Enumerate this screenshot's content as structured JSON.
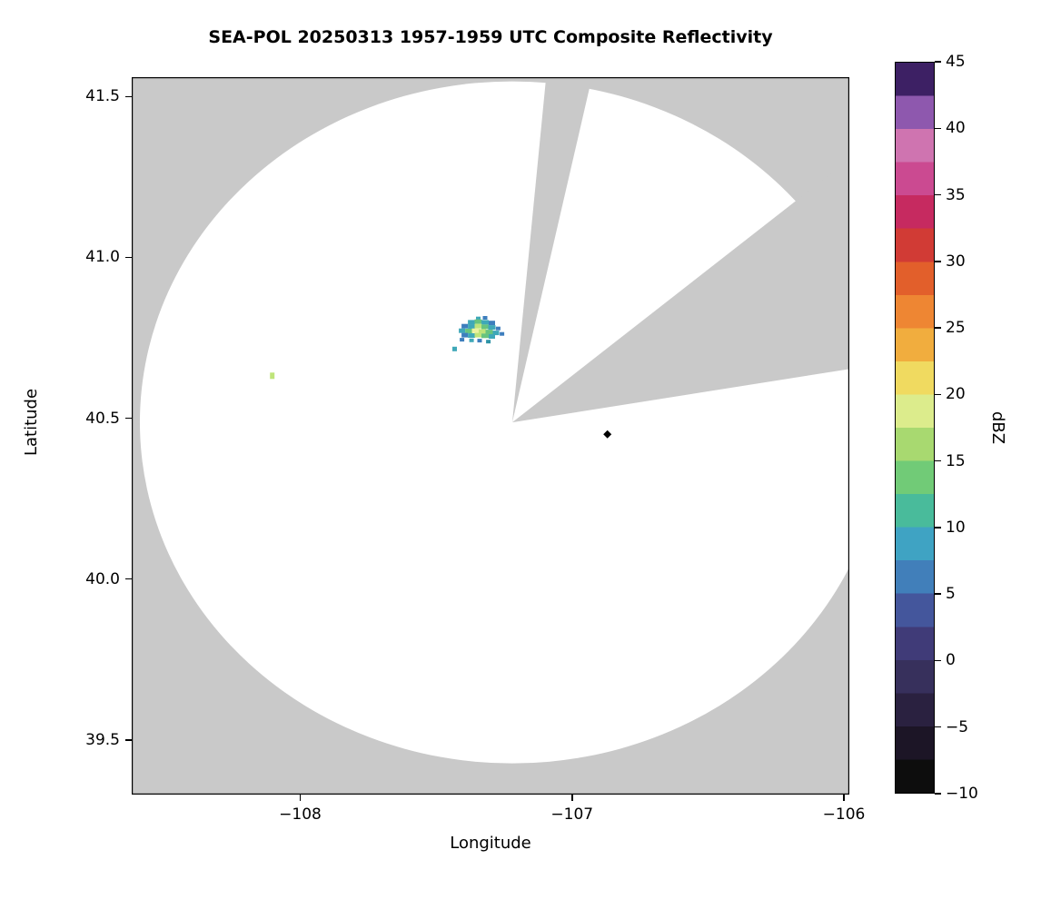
{
  "chart_data": {
    "type": "heatmap",
    "title": "SEA-POL 20250313 1957-1959 UTC Composite Reflectivity",
    "xlabel": "Longitude",
    "ylabel": "Latitude",
    "xlim": [
      -108.62,
      -105.98
    ],
    "ylim": [
      39.33,
      41.56
    ],
    "xticks": [
      {
        "value": -108,
        "label": "−108"
      },
      {
        "value": -107,
        "label": "−107"
      },
      {
        "value": -106,
        "label": "−106"
      }
    ],
    "yticks": [
      {
        "value": 41.5,
        "label": "41.5"
      },
      {
        "value": 41.0,
        "label": "41.0"
      },
      {
        "value": 40.5,
        "label": "40.5"
      },
      {
        "value": 40.0,
        "label": "40.0"
      },
      {
        "value": 39.5,
        "label": "39.5"
      }
    ],
    "grid": false,
    "background_color": "#c9c9c9",
    "coverage_color": "#ffffff",
    "radar": {
      "center_lon": -107.22,
      "center_lat": 40.487,
      "radius_lon_deg": 1.37,
      "radius_lat_deg": 1.06
    },
    "blocked_sectors_deg": [
      [
        77,
        84.4
      ],
      [
        9,
        38
      ]
    ],
    "echoes": [
      {
        "lon": -107.345,
        "lat": 40.81,
        "color": "#3fa8b8",
        "w": 5,
        "h": 4
      },
      {
        "lon": -107.32,
        "lat": 40.812,
        "color": "#3d7ebd",
        "w": 5,
        "h": 4
      },
      {
        "lon": -107.37,
        "lat": 40.798,
        "color": "#3fa8b8",
        "w": 8,
        "h": 5
      },
      {
        "lon": -107.345,
        "lat": 40.8,
        "color": "#68c47e",
        "w": 8,
        "h": 5
      },
      {
        "lon": -107.32,
        "lat": 40.798,
        "color": "#3fa8b8",
        "w": 8,
        "h": 5
      },
      {
        "lon": -107.295,
        "lat": 40.796,
        "color": "#3d7ebd",
        "w": 7,
        "h": 5
      },
      {
        "lon": -107.395,
        "lat": 40.786,
        "color": "#3d7ebd",
        "w": 7,
        "h": 5
      },
      {
        "lon": -107.37,
        "lat": 40.785,
        "color": "#3fa8b8",
        "w": 8,
        "h": 5
      },
      {
        "lon": -107.345,
        "lat": 40.786,
        "color": "#bfe47a",
        "w": 8,
        "h": 5
      },
      {
        "lon": -107.32,
        "lat": 40.784,
        "color": "#68c47e",
        "w": 8,
        "h": 5
      },
      {
        "lon": -107.295,
        "lat": 40.782,
        "color": "#3fa8b8",
        "w": 8,
        "h": 5
      },
      {
        "lon": -107.272,
        "lat": 40.779,
        "color": "#3d7ebd",
        "w": 5,
        "h": 4
      },
      {
        "lon": -107.405,
        "lat": 40.772,
        "color": "#3fa8b8",
        "w": 7,
        "h": 5
      },
      {
        "lon": -107.38,
        "lat": 40.771,
        "color": "#68c47e",
        "w": 8,
        "h": 5
      },
      {
        "lon": -107.355,
        "lat": 40.772,
        "color": "#ecf2a0",
        "w": 8,
        "h": 5
      },
      {
        "lon": -107.33,
        "lat": 40.77,
        "color": "#bfe47a",
        "w": 8,
        "h": 5
      },
      {
        "lon": -107.305,
        "lat": 40.768,
        "color": "#68c47e",
        "w": 8,
        "h": 5
      },
      {
        "lon": -107.28,
        "lat": 40.765,
        "color": "#3fa8b8",
        "w": 7,
        "h": 5
      },
      {
        "lon": -107.258,
        "lat": 40.762,
        "color": "#3d7ebd",
        "w": 5,
        "h": 4
      },
      {
        "lon": -107.395,
        "lat": 40.758,
        "color": "#3d7ebd",
        "w": 7,
        "h": 5
      },
      {
        "lon": -107.37,
        "lat": 40.757,
        "color": "#3fa8b8",
        "w": 8,
        "h": 5
      },
      {
        "lon": -107.345,
        "lat": 40.758,
        "color": "#bfe47a",
        "w": 8,
        "h": 5
      },
      {
        "lon": -107.32,
        "lat": 40.756,
        "color": "#68c47e",
        "w": 8,
        "h": 5
      },
      {
        "lon": -107.295,
        "lat": 40.754,
        "color": "#3fa8b8",
        "w": 7,
        "h": 5
      },
      {
        "lon": -107.405,
        "lat": 40.744,
        "color": "#3d7ebd",
        "w": 5,
        "h": 4
      },
      {
        "lon": -107.37,
        "lat": 40.742,
        "color": "#3fa8b8",
        "w": 5,
        "h": 4
      },
      {
        "lon": -107.34,
        "lat": 40.741,
        "color": "#3d7ebd",
        "w": 5,
        "h": 4
      },
      {
        "lon": -107.308,
        "lat": 40.738,
        "color": "#2e93a6",
        "w": 5,
        "h": 4
      },
      {
        "lon": -107.432,
        "lat": 40.715,
        "color": "#3fa8b8",
        "w": 5,
        "h": 5
      },
      {
        "lon": -108.103,
        "lat": 40.632,
        "color": "#bfe47a",
        "w": 5,
        "h": 7
      }
    ],
    "marker": {
      "lon": -106.87,
      "lat": 40.45,
      "color": "#000000",
      "shape": "diamond"
    },
    "colorbar": {
      "label": "dBZ",
      "min": -10,
      "max": 45,
      "band_size_dbz": 2.5,
      "ticks": [
        {
          "value": 45,
          "label": "45"
        },
        {
          "value": 40,
          "label": "40"
        },
        {
          "value": 35,
          "label": "35"
        },
        {
          "value": 30,
          "label": "30"
        },
        {
          "value": 25,
          "label": "25"
        },
        {
          "value": 20,
          "label": "20"
        },
        {
          "value": 15,
          "label": "15"
        },
        {
          "value": 10,
          "label": "10"
        },
        {
          "value": 5,
          "label": "5"
        },
        {
          "value": 0,
          "label": "0"
        },
        {
          "value": -5,
          "label": "−5"
        },
        {
          "value": -10,
          "label": "−10"
        }
      ],
      "colors_bottom_to_top": [
        "#0d0d0d",
        "#1c1526",
        "#2a2140",
        "#37305c",
        "#403b78",
        "#44569c",
        "#417fba",
        "#3fa3c3",
        "#49bb9b",
        "#71cb77",
        "#a8d970",
        "#dcec8c",
        "#f0da60",
        "#f1ad3e",
        "#ee8633",
        "#e25f2b",
        "#d13b35",
        "#c62a60",
        "#cb4a91",
        "#cf74b0",
        "#8e58ae",
        "#3d2064"
      ]
    }
  }
}
